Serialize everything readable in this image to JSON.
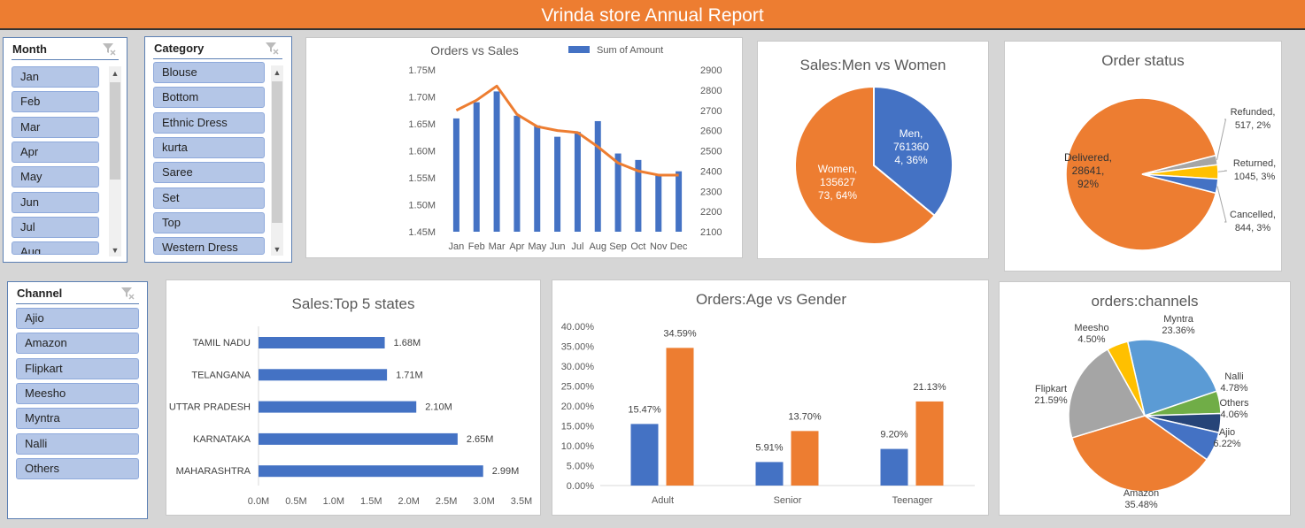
{
  "report_title": "Vrinda store Annual Report",
  "slicers": {
    "month": {
      "title": "Month",
      "items": [
        "Jan",
        "Feb",
        "Mar",
        "Apr",
        "May",
        "Jun",
        "Jul",
        "Aug"
      ]
    },
    "category": {
      "title": "Category",
      "items": [
        "Blouse",
        "Bottom",
        "Ethnic Dress",
        "kurta",
        "Saree",
        "Set",
        "Top",
        "Western Dress"
      ]
    },
    "channel": {
      "title": "Channel",
      "items": [
        "Ajio",
        "Amazon",
        "Flipkart",
        "Meesho",
        "Myntra",
        "Nalli",
        "Others"
      ]
    }
  },
  "colors": {
    "blue": "#4472c4",
    "orange": "#ed7d31",
    "gray": "#a5a5a5",
    "gold": "#ffc000",
    "lightblue": "#5b9bd5",
    "green": "#70ad47",
    "navy": "#264478"
  },
  "chart_data": [
    {
      "id": "orders_vs_sales",
      "type": "bar",
      "title": "Orders vs Sales",
      "legend": "Sum of Amount",
      "categories": [
        "Jan",
        "Feb",
        "Mar",
        "Apr",
        "May",
        "Jun",
        "Jul",
        "Aug",
        "Sep",
        "Oct",
        "Nov",
        "Dec"
      ],
      "series": [
        {
          "name": "Sum of Amount",
          "values": [
            1.66,
            1.69,
            1.71,
            1.665,
            1.647,
            1.626,
            1.635,
            1.655,
            1.595,
            1.583,
            1.557,
            1.562
          ]
        },
        {
          "values": [
            2700,
            2750,
            2820,
            2680,
            2620,
            2600,
            2590,
            2520,
            2440,
            2400,
            2380,
            2380
          ]
        }
      ],
      "left_axis": {
        "min": 1.45,
        "max": 1.75,
        "ticks": [
          "1.45M",
          "1.50M",
          "1.55M",
          "1.60M",
          "1.65M",
          "1.70M",
          "1.75M"
        ]
      },
      "right_axis": {
        "min": 2100,
        "max": 2900,
        "ticks": [
          "2100",
          "2200",
          "2300",
          "2400",
          "2500",
          "2600",
          "2700",
          "2800",
          "2900"
        ]
      }
    },
    {
      "id": "sales_men_women",
      "type": "pie",
      "title": "Sales:Men vs Women",
      "slices": [
        {
          "name": "Men",
          "value": 36,
          "label_lines": [
            "Men,",
            "761360",
            "4, 36%"
          ]
        },
        {
          "name": "Women",
          "value": 64,
          "label_lines": [
            "Women,",
            "135627",
            "73, 64%"
          ]
        }
      ]
    },
    {
      "id": "order_status",
      "type": "pie",
      "title": "Order status",
      "slices": [
        {
          "name": "Delivered",
          "value": 92,
          "label_lines": [
            "Delivered,",
            "28641,",
            "92%"
          ]
        },
        {
          "name": "Refunded",
          "value": 2,
          "label_lines": [
            "Refunded,",
            "517, 2%"
          ]
        },
        {
          "name": "Returned",
          "value": 3,
          "label_lines": [
            "Returned,",
            "1045, 3%"
          ]
        },
        {
          "name": "Cancelled",
          "value": 3,
          "label_lines": [
            "Cancelled,",
            "844, 3%"
          ]
        }
      ]
    },
    {
      "id": "top5_states",
      "type": "bar",
      "title": "Sales:Top 5 states",
      "categories": [
        "TAMIL NADU",
        "TELANGANA",
        "UTTAR PRADESH",
        "KARNATAKA",
        "MAHARASHTRA"
      ],
      "values": [
        1.68,
        1.71,
        2.1,
        2.65,
        2.99
      ],
      "value_labels": [
        "1.68M",
        "1.71M",
        "2.10M",
        "2.65M",
        "2.99M"
      ],
      "xlim": [
        0,
        3.5
      ],
      "ticks": [
        "0.0M",
        "0.5M",
        "1.0M",
        "1.5M",
        "2.0M",
        "2.5M",
        "3.0M",
        "3.5M"
      ]
    },
    {
      "id": "age_vs_gender",
      "type": "bar",
      "title": "Orders:Age vs Gender",
      "categories": [
        "Adult",
        "Senior",
        "Teenager"
      ],
      "series": [
        {
          "values": [
            15.47,
            5.91,
            9.2
          ],
          "labels": [
            "15.47%",
            "5.91%",
            "9.20%"
          ]
        },
        {
          "values": [
            34.59,
            13.7,
            21.13
          ],
          "labels": [
            "34.59%",
            "13.70%",
            "21.13%"
          ]
        }
      ],
      "ylim": [
        0,
        40
      ],
      "ticks": [
        "0.00%",
        "5.00%",
        "10.00%",
        "15.00%",
        "20.00%",
        "25.00%",
        "30.00%",
        "35.00%",
        "40.00%"
      ]
    },
    {
      "id": "orders_channels",
      "type": "pie",
      "title": "orders:channels",
      "slices": [
        {
          "name": "Myntra",
          "value": 23.36,
          "label_lines": [
            "Myntra",
            "23.36%"
          ]
        },
        {
          "name": "Nalli",
          "value": 4.78,
          "label_lines": [
            "Nalli",
            "4.78%"
          ]
        },
        {
          "name": "Others",
          "value": 4.06,
          "label_lines": [
            "Others",
            "4.06%"
          ]
        },
        {
          "name": "Ajio",
          "value": 6.22,
          "label_lines": [
            "Ajio",
            "6.22%"
          ]
        },
        {
          "name": "Amazon",
          "value": 35.48,
          "label_lines": [
            "Amazon",
            "35.48%"
          ]
        },
        {
          "name": "Flipkart",
          "value": 21.59,
          "label_lines": [
            "Flipkart",
            "21.59%"
          ]
        },
        {
          "name": "Meesho",
          "value": 4.5,
          "label_lines": [
            "Meesho",
            "4.50%"
          ]
        }
      ]
    }
  ]
}
